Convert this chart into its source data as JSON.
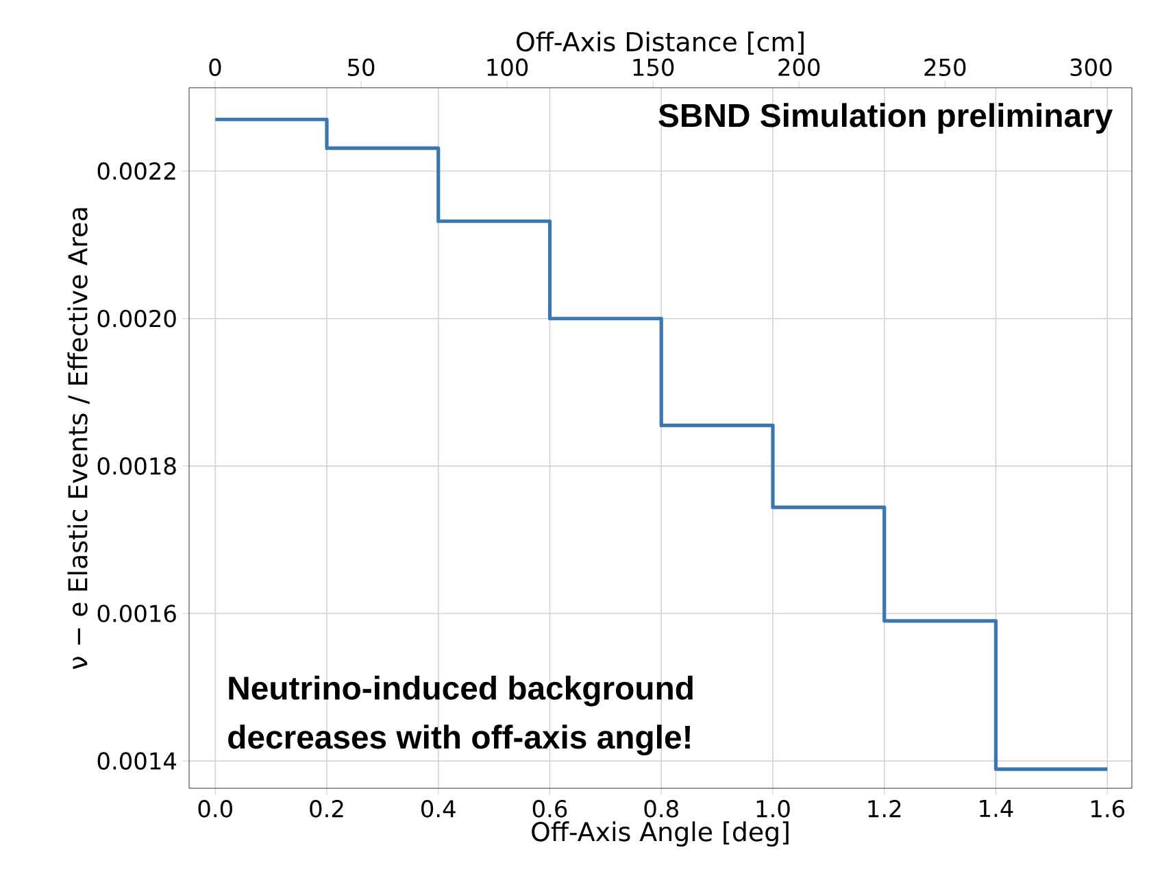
{
  "chart_data": {
    "type": "step",
    "xlabel": "Off-Axis Angle [deg]",
    "ylabel": "ν − e Elastic Events / Effective Area",
    "x2label": "Off-Axis Distance [cm]",
    "x": [
      0,
      0.2,
      0.4,
      0.6,
      0.8,
      1.0,
      1.2,
      1.4,
      1.6
    ],
    "series": [
      {
        "color": "#3a76b0",
        "values": [
          0.00227,
          0.002231,
          0.002132,
          0.002,
          0.001855,
          0.001744,
          0.00159,
          0.001389,
          0.001389
        ]
      }
    ],
    "xlim": [
      -0.047,
      1.644
    ],
    "xticks": [
      {
        "value": 0,
        "label": "0.0"
      },
      {
        "value": 0.2,
        "label": "0.2"
      },
      {
        "value": 0.4,
        "label": "0.4"
      },
      {
        "value": 0.6,
        "label": "0.6"
      },
      {
        "value": 0.8,
        "label": "0.8"
      },
      {
        "value": 1.0,
        "label": "1.0"
      },
      {
        "value": 1.2,
        "label": "1.2"
      },
      {
        "value": 1.4,
        "label": "1.4"
      },
      {
        "value": 1.6,
        "label": "1.6"
      }
    ],
    "x2lim": [
      -8.9,
      314
    ],
    "x2ticks": [
      0,
      50,
      100,
      150,
      200,
      250,
      300
    ],
    "ylim": [
      0.001363,
      0.002313
    ],
    "yticks": [
      0.0014,
      0.0016,
      0.0018,
      {
        "value": 0.002,
        "label": "0.0020"
      },
      0.0022
    ],
    "grid": true,
    "annotations": [
      "SBND Simulation preliminary",
      "Neutrino-induced background",
      "decreases with off-axis angle!"
    ]
  }
}
